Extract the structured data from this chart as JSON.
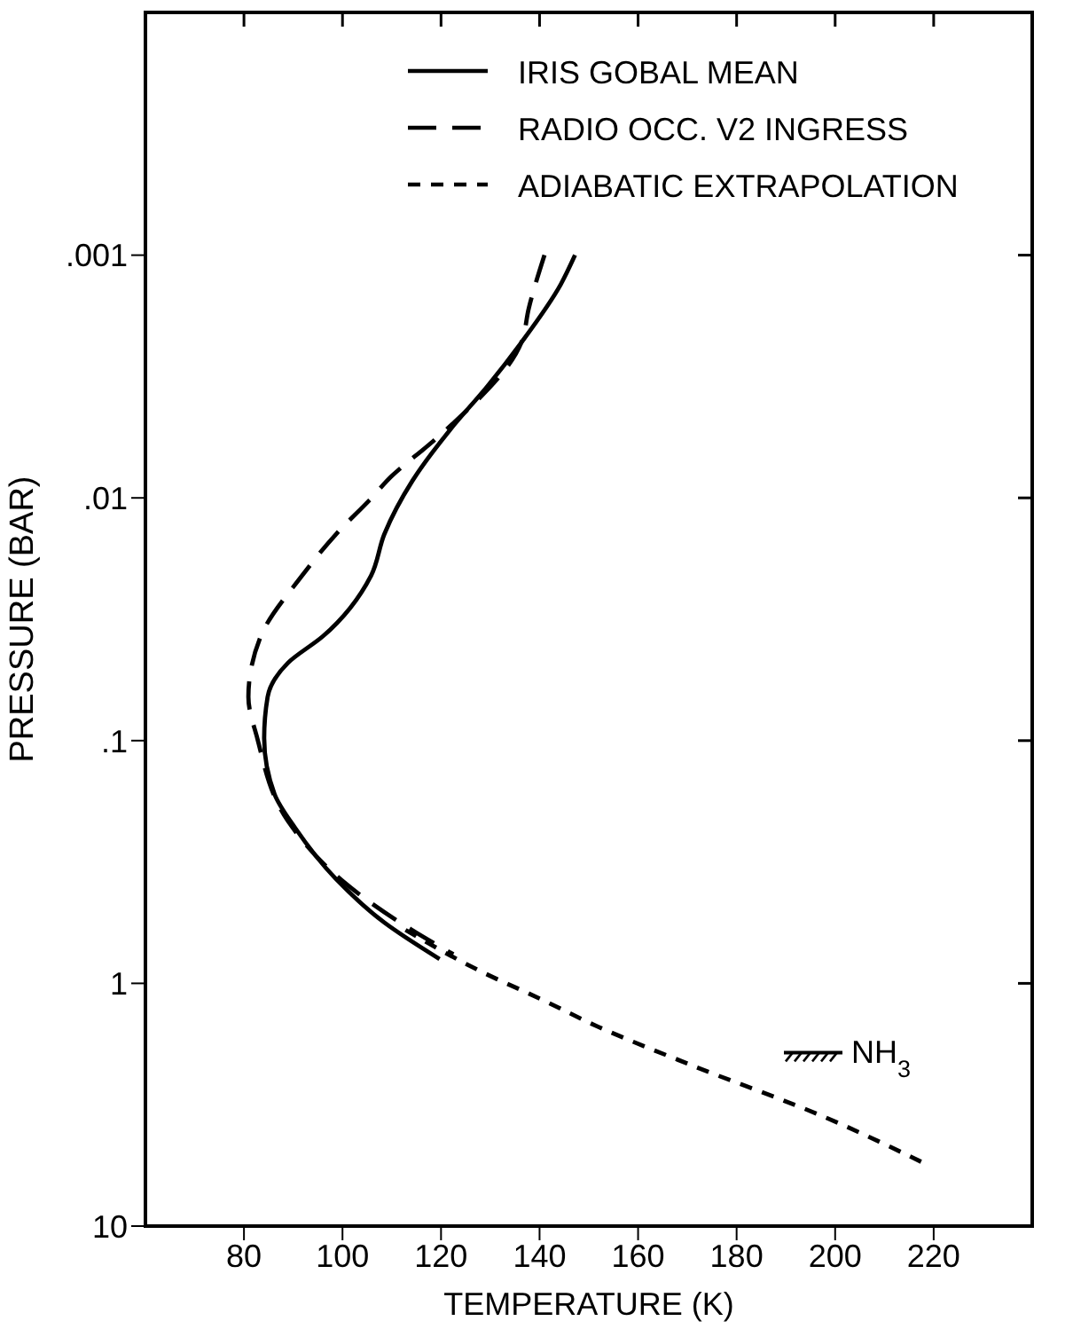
{
  "chart_data": {
    "type": "line",
    "xlabel": "TEMPERATURE (K)",
    "ylabel": "PRESSURE (BAR)",
    "xlim": [
      60,
      240
    ],
    "xticks": [
      80,
      100,
      120,
      140,
      160,
      180,
      200,
      220
    ],
    "ylim": [
      10,
      0.0001
    ],
    "yticks": [
      {
        "value": 0.001,
        "label": ".001"
      },
      {
        "value": 0.01,
        "label": ".01"
      },
      {
        "value": 0.1,
        "label": ".1"
      },
      {
        "value": 1,
        "label": "1"
      },
      {
        "value": 10,
        "label": "10"
      }
    ],
    "log": "y",
    "legend": "top right",
    "marker": "none",
    "series": [
      {
        "name": "IRIS GOBAL MEAN",
        "color": "#000000",
        "line_style": "solid",
        "x": [
          147.2,
          144.3,
          136.3,
          129.4,
          121.8,
          114.2,
          108.5,
          105.8,
          96,
          88.9,
          84.8,
          84.1,
          86.2,
          90.4,
          98.7,
          108.5,
          119.7
        ],
        "values": [
          0.001,
          0.00132,
          0.00229,
          0.00347,
          0.00525,
          0.0085,
          0.0141,
          0.0209,
          0.0372,
          0.0479,
          0.0661,
          0.0977,
          0.166,
          0.229,
          0.372,
          0.562,
          0.794
        ]
      },
      {
        "name": "RADIO OCC. V2 INGRESS",
        "color": "#000000",
        "line_style": "dashed",
        "x": [
          141,
          137.8,
          136.3,
          122.6,
          118.2,
          110,
          105.5,
          98.7,
          91.8,
          83.4,
          80.9,
          82.7,
          88.9,
          100.1,
          114.1,
          122.5
        ],
        "values": [
          0.001,
          0.00166,
          0.00229,
          0.0049,
          0.00589,
          0.00813,
          0.0102,
          0.0141,
          0.0209,
          0.0372,
          0.0661,
          0.0977,
          0.214,
          0.38,
          0.603,
          0.759
        ]
      },
      {
        "name": "ADIABATIC EXTRAPOLATION",
        "color": "#000000",
        "line_style": "dotted",
        "x": [
          112.8,
          128,
          140.6,
          151.9,
          170,
          197.8,
          218
        ],
        "values": [
          0.603,
          0.891,
          1.17,
          1.51,
          2.14,
          3.55,
          5.5
        ]
      }
    ],
    "annotations": [
      "NH$_{3}$"
    ]
  }
}
